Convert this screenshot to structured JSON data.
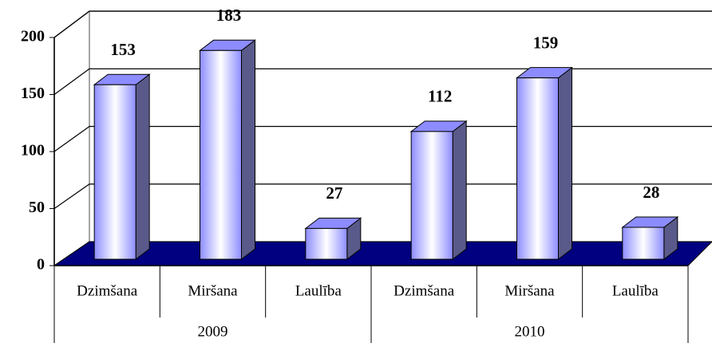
{
  "chart_data": {
    "type": "bar3d",
    "categories": [
      "Dzimšana",
      "Miršana",
      "Laulība",
      "Dzimšana",
      "Miršana",
      "Laulība"
    ],
    "groups": [
      "2009",
      "2010"
    ],
    "values": [
      153,
      183,
      27,
      112,
      159,
      28
    ],
    "color": "#8c8cff",
    "floor_color": "#000080",
    "ylim": [
      0,
      200
    ],
    "yticks": [
      0,
      50,
      100,
      150,
      200
    ],
    "grid": true
  }
}
